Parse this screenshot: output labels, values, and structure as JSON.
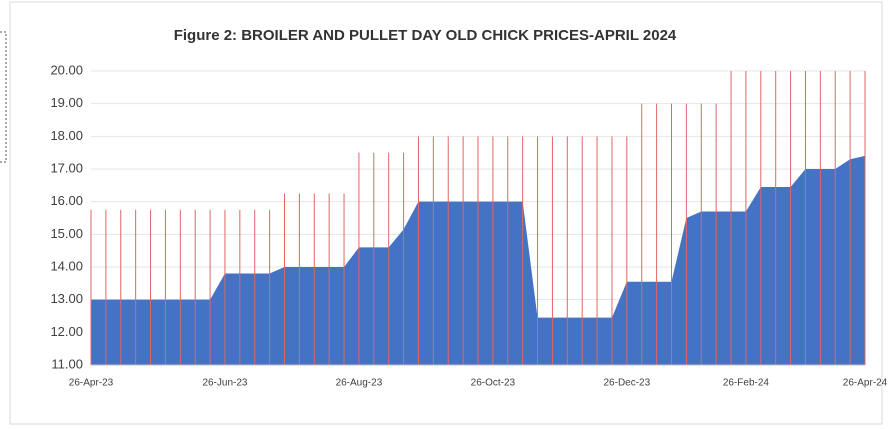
{
  "chart_data": {
    "type": "area",
    "title": "Figure 2: BROILER AND PULLET DAY OLD CHICK PRICES-APRIL 2024",
    "categories": [
      "26-Apr-23",
      null,
      null,
      null,
      null,
      null,
      null,
      null,
      null,
      "26-Jun-23",
      null,
      null,
      null,
      null,
      null,
      null,
      null,
      null,
      "26-Aug-23",
      null,
      null,
      null,
      null,
      null,
      null,
      null,
      null,
      "26-Oct-23",
      null,
      null,
      null,
      null,
      null,
      null,
      null,
      null,
      "26-Dec-23",
      null,
      null,
      null,
      null,
      null,
      null,
      null,
      "26-Feb-24",
      null,
      null,
      null,
      null,
      null,
      null,
      null,
      "26-Apr-24"
    ],
    "series": [
      {
        "name": "Broiler",
        "color": "#4472c4",
        "style": "area",
        "values": [
          13.0,
          13.0,
          13.0,
          13.0,
          13.0,
          13.0,
          13.0,
          13.0,
          13.0,
          13.8,
          13.8,
          13.8,
          13.8,
          14.0,
          14.0,
          14.0,
          14.0,
          14.0,
          14.6,
          14.6,
          14.6,
          15.15,
          16.0,
          16.0,
          16.0,
          16.0,
          16.0,
          16.0,
          16.0,
          16.0,
          12.45,
          12.45,
          12.45,
          12.45,
          12.45,
          12.45,
          13.55,
          13.55,
          13.55,
          13.55,
          15.5,
          15.7,
          15.7,
          15.7,
          15.7,
          16.45,
          16.45,
          16.45,
          17.0,
          17.0,
          17.0,
          17.3,
          17.4
        ]
      },
      {
        "name": "Pullet",
        "color": "#e06666",
        "style": "droplines",
        "values": [
          15.75,
          15.75,
          15.75,
          15.75,
          15.75,
          15.75,
          15.75,
          15.75,
          15.75,
          15.75,
          15.75,
          15.75,
          15.75,
          16.25,
          16.25,
          16.25,
          16.25,
          16.25,
          17.5,
          17.5,
          17.5,
          17.5,
          18.0,
          18.0,
          18.0,
          18.0,
          18.0,
          18.0,
          18.0,
          18.0,
          18.0,
          18.0,
          18.0,
          18.0,
          18.0,
          18.0,
          18.0,
          19.0,
          19.0,
          19.0,
          19.0,
          19.0,
          19.0,
          20.0,
          20.0,
          20.0,
          20.0,
          20.0,
          20.0,
          20.0,
          20.0,
          20.0,
          20.0
        ]
      }
    ],
    "ylim": [
      11,
      20
    ],
    "yticks": [
      {
        "value": 11,
        "label": "11.00"
      },
      {
        "value": 12,
        "label": "12.00"
      },
      {
        "value": 13,
        "label": "13.00"
      },
      {
        "value": 14,
        "label": "14.00"
      },
      {
        "value": 15,
        "label": "15.00"
      },
      {
        "value": 16,
        "label": "16.00"
      },
      {
        "value": 17,
        "label": "17.00"
      },
      {
        "value": 18,
        "label": "18.00"
      },
      {
        "value": 19,
        "label": "19.00"
      },
      {
        "value": 20,
        "label": "20.00"
      }
    ]
  }
}
